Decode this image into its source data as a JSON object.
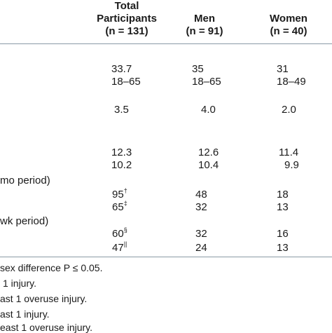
{
  "table": {
    "headers": {
      "total_line1": "Total",
      "total_line2": "Participants",
      "total_n": "(n = 131)",
      "men": "Men",
      "men_n": "(n = 91)",
      "women": "Women",
      "women_n": "(n = 40)"
    },
    "rows": [
      {
        "total": "33.7",
        "total_sup": "",
        "men": "35",
        "women": "31"
      },
      {
        "total": "18–65",
        "total_sup": "",
        "men": "18–65",
        "women": "18–49"
      },
      {
        "total": "3.5",
        "total_sup": "",
        "men": "4.0",
        "women": "2.0"
      },
      {
        "total": "12.3",
        "total_sup": "",
        "men": "12.6",
        "women": "11.4"
      },
      {
        "total": "10.2",
        "total_sup": "",
        "men": "10.4",
        "women": "9.9"
      },
      {
        "total": "95",
        "total_sup": "†",
        "men": "48",
        "women": "18"
      },
      {
        "total": "65",
        "total_sup": "‡",
        "men": "32",
        "women": "13"
      },
      {
        "total": "60",
        "total_sup": "§",
        "men": "32",
        "women": "16"
      },
      {
        "total": "47",
        "total_sup": "||",
        "men": "24",
        "women": "13"
      }
    ],
    "group_labels": [
      "mo period)",
      "wk period)"
    ]
  },
  "footnotes": [
    "sex difference P ≤ 0.05.",
    "1 injury.",
    "ast 1 overuse injury.",
    "ast 1 injury.",
    "east 1 overuse injury."
  ]
}
